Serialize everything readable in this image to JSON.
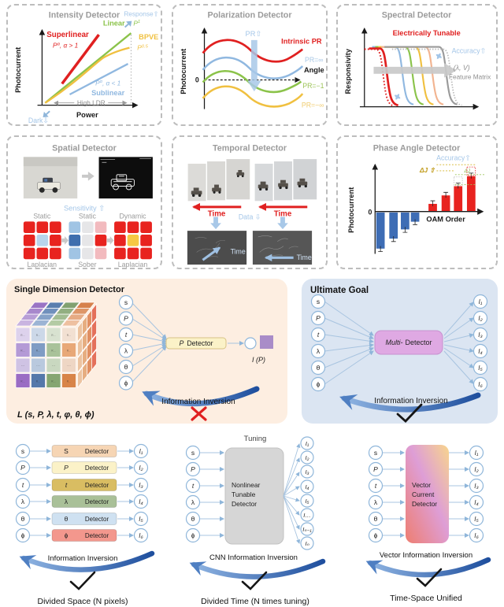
{
  "panels": {
    "intensity": {
      "title": "Intensity Detector",
      "ylabel": "Photocurrent",
      "xlabel": "Power",
      "response": "Response⇧",
      "dark": "Dark⇩",
      "superlinear": "Superlinear",
      "superlinear_eq": {
        "base": "P",
        "sup": "α",
        "cond": ", α > 1"
      },
      "linear": "Linear",
      "linear_eq": {
        "base": "P",
        "sup": "1"
      },
      "bpve": "BPVE",
      "bpve_eq": {
        "base": "P",
        "sup": "0.5"
      },
      "sublinear": "Sublinear",
      "sublinear_eq": {
        "base": "P",
        "sup": "α",
        "cond": ", α < 1"
      },
      "ldr": "High LDR"
    },
    "polarization": {
      "title": "Polarization Detector",
      "ylabel": "Photocurrent",
      "zero": "0",
      "xlabel": "Angle",
      "pr_up": "PR⇧",
      "intrinsic": "Intrinsic PR",
      "pr_inf": "PR=∞",
      "pr_neg1": "PR=−1",
      "pr_neginf": "PR=−∞"
    },
    "spectral": {
      "title": "Spectral Detector",
      "ylabel": "Responsivity",
      "xlabel": "Wavelength",
      "tunable": "Electrically Tunable",
      "accuracy": "Accuracy⇧",
      "feature_line1": "(λ, V)",
      "feature_line2": "Feature Matrix"
    },
    "spatial": {
      "title": "Spatial Detector",
      "sensitivity": "Sensitivity ⇧",
      "top_labels": [
        "Static",
        "Static",
        "Dynamic"
      ],
      "bottom_labels": [
        "Laplacian",
        "Sober",
        "Laplacian"
      ],
      "grids": [
        [
          "#e8231f",
          "#e8231f",
          "#e8231f",
          "#e8231f",
          "#b8d4ec",
          "#e8231f",
          "#e8231f",
          "#e8231f",
          "#e8231f"
        ],
        [
          "#a0c4e4",
          "#e6e6e8",
          "#f2babe",
          "#3f6fae",
          "#e6e6e8",
          "#e8231f",
          "#a0c4e4",
          "#e6e6e8",
          "#f2babe"
        ],
        [
          "#e8231f",
          "#e8231f",
          "#e8231f",
          "#e8231f",
          "#f6c844",
          "#e8231f",
          "#e8231f",
          "#e8231f",
          "#e8231f"
        ]
      ]
    },
    "temporal": {
      "title": "Temporal Detector",
      "time_left": "Time",
      "time_right": "Time",
      "data": "Data ⇩",
      "time_img_left": "Time",
      "time_img_right": "Time"
    },
    "phase": {
      "title": "Phase Angle Detector",
      "ylabel": "Photocurrent",
      "zero": "0",
      "xlabel": "OAM Order",
      "accuracy": "Accuracy⇧",
      "dj": "ΔJ ⇧",
      "dj_small": "ΔJ",
      "bars": {
        "blue_x": [
          55,
          72,
          87,
          100
        ],
        "blue_h": [
          47,
          34,
          22,
          12
        ],
        "red_x": [
          123,
          140,
          156,
          173
        ],
        "red_h": [
          10,
          21,
          33,
          46
        ]
      }
    }
  },
  "single": {
    "title": "Single Dimension Detector",
    "cube_label": "L (s, P, λ, t, φ, θ, ϕ)",
    "inputs": [
      "s",
      "P",
      "t",
      "λ",
      "θ",
      "ϕ"
    ],
    "det_sym": "P",
    "det_word": "Detector",
    "output": "I (P)",
    "inversion": "Information Inversion"
  },
  "ultimate": {
    "title": "Ultimate Goal",
    "inputs": [
      "s",
      "P",
      "t",
      "λ",
      "θ",
      "ϕ"
    ],
    "det_sym": "Multi-",
    "det_word": "Detector",
    "outputs": [
      "I₁",
      "I₂",
      "I₃",
      "I₄",
      "I₅",
      "I₆"
    ],
    "inversion": "Information Inversion"
  },
  "bottom": {
    "space": {
      "rows": [
        {
          "in": "s",
          "sym": "S",
          "out": "I₁"
        },
        {
          "in": "P",
          "sym": "P",
          "out": "I₂"
        },
        {
          "in": "t",
          "sym": "t",
          "out": "I₃"
        },
        {
          "in": "λ",
          "sym": "λ",
          "out": "I₄"
        },
        {
          "in": "θ",
          "sym": "θ",
          "out": "I₅"
        },
        {
          "in": "ϕ",
          "sym": "ϕ",
          "out": "I₆"
        }
      ],
      "word": "Detector",
      "inversion": "Information Inversion",
      "caption": "Divided Space (N pixels)"
    },
    "time": {
      "tuning": "Tuning",
      "inputs": [
        "s",
        "P",
        "t",
        "λ",
        "θ",
        "ϕ"
      ],
      "box": [
        "Nonlinear",
        "Tunable",
        "Detector"
      ],
      "outputs": [
        "I₁",
        "I₂",
        "I₃",
        "I₄",
        "I₅",
        "I…",
        "Iₙ₋₁",
        "Iₙ"
      ],
      "inversion": "CNN Information Inversion",
      "caption": "Divided Time (N times tuning)"
    },
    "unified": {
      "inputs": [
        "s",
        "P",
        "t",
        "λ",
        "θ",
        "ϕ"
      ],
      "box": [
        "Vector",
        "Current",
        "Detector"
      ],
      "outputs": [
        "I₁",
        "I₂",
        "I₃",
        "I₄",
        "I₅",
        "I₆"
      ],
      "inversion": "Vector Information Inversion",
      "caption": "Time-Space Unified"
    }
  },
  "colors": {
    "red": "#e02020",
    "green": "#8bc34a",
    "yellow": "#f0c040",
    "line_blue": "#90b8e0",
    "label_blue": "#a4c6e8",
    "title_gray": "#9b9b9b",
    "bar_blue": "#3e6db5",
    "bar_red": "#e8231f",
    "orange_bg": "#fdeee1",
    "blue_bg": "#dbe5f2",
    "multi_box": "#dfa9e3",
    "p_box": "#fbf2c8",
    "detector_fills": [
      "#f6d5b4",
      "#fbf2c8",
      "#d9bd62",
      "#a9c098",
      "#cfe1f1",
      "#f3978d"
    ],
    "cube": {
      "front": [
        [
          "#ddd2ec",
          "#ccd8e8",
          "#d8e2d0",
          "#f2e0d2"
        ],
        [
          "#b49ad6",
          "#7f9cc4",
          "#a9c29a",
          "#e8a878"
        ],
        [
          "#cfc3e4",
          "#b9c9de",
          "#c9d8c0",
          "#eed6c4"
        ],
        [
          "#9a6cc4",
          "#5578aa",
          "#85a671",
          "#d88448"
        ]
      ],
      "top": [
        [
          "#c9b4e0",
          "#b89ed6",
          "#a888cc",
          "#9a74c4"
        ],
        [
          "#9cb4d4",
          "#86a2c8",
          "#7090bc",
          "#5a7eae"
        ],
        [
          "#b4cba4",
          "#a3bd92",
          "#92af81",
          "#81a170"
        ],
        [
          "#eec0a0",
          "#e6ab84",
          "#de9668",
          "#d6814c"
        ]
      ],
      "right": [
        "#ecc3a0",
        "#e6ad80",
        "#e08f62",
        "#e4705a"
      ],
      "mark": "R…",
      "dots": "⋯"
    }
  }
}
